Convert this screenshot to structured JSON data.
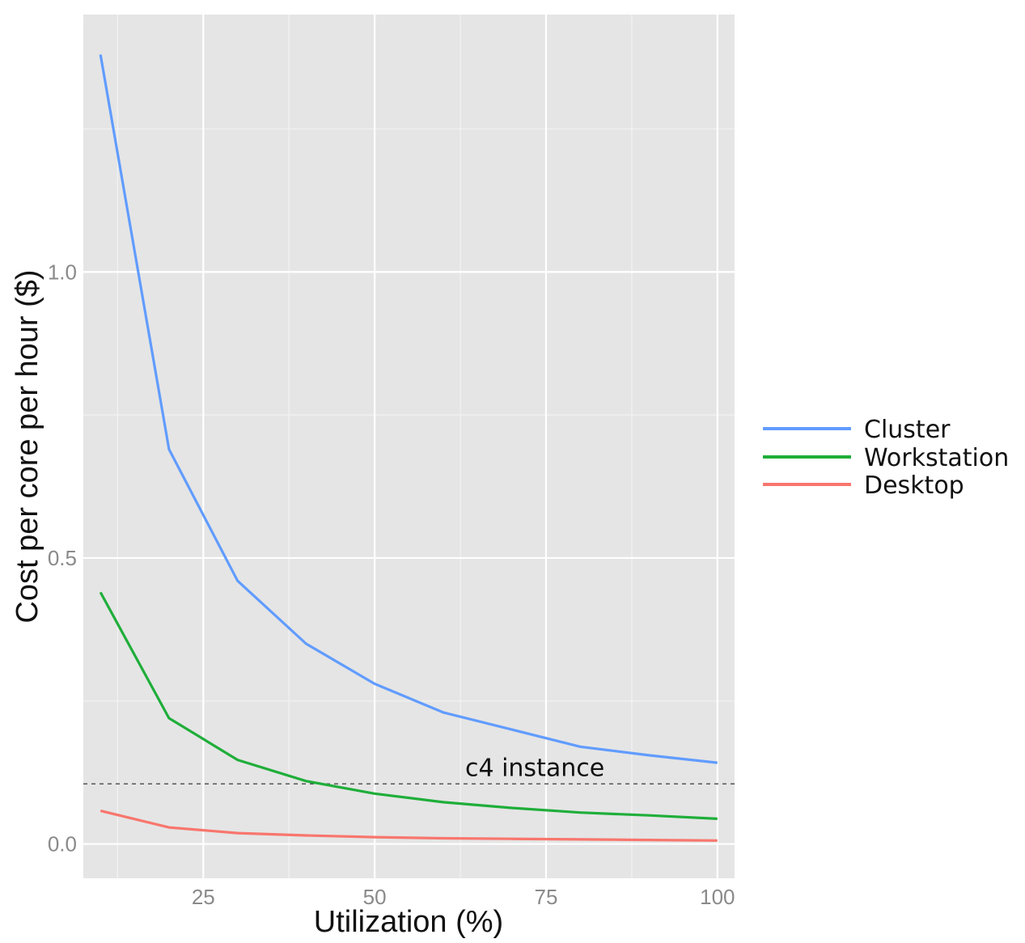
{
  "chart_data": {
    "type": "line",
    "xlabel": "Utilization (%)",
    "ylabel": "Cost per core per hour ($)",
    "xlim": [
      7.5,
      102.5
    ],
    "ylim": [
      -0.06,
      1.45
    ],
    "x_ticks": [
      25,
      50,
      75,
      100
    ],
    "x_tick_labels": [
      "25",
      "50",
      "75",
      "100"
    ],
    "y_ticks": [
      0.0,
      0.5,
      1.0
    ],
    "y_tick_labels": [
      "0.0",
      "0.5",
      "1.0"
    ],
    "grid": true,
    "legend_position": "right",
    "x": [
      10,
      20,
      30,
      40,
      50,
      60,
      70,
      80,
      90,
      100
    ],
    "series": [
      {
        "name": "Cluster",
        "color": "#619CFF",
        "values": [
          1.38,
          0.69,
          0.46,
          0.35,
          0.28,
          0.23,
          0.2,
          0.17,
          0.155,
          0.142
        ]
      },
      {
        "name": "Workstation",
        "color": "#1FAE3A",
        "values": [
          0.44,
          0.22,
          0.147,
          0.11,
          0.088,
          0.073,
          0.063,
          0.055,
          0.05,
          0.044
        ]
      },
      {
        "name": "Desktop",
        "color": "#F8766D",
        "values": [
          0.058,
          0.029,
          0.019,
          0.015,
          0.012,
          0.01,
          0.009,
          0.008,
          0.007,
          0.006
        ]
      }
    ],
    "reference_line": {
      "y": 0.105,
      "label": "c4 instance",
      "style": "dashed"
    }
  }
}
